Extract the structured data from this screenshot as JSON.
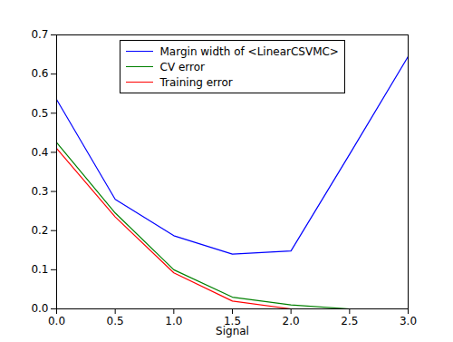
{
  "chart_data": {
    "type": "line",
    "x_label": "Signal",
    "x": [
      0,
      0.5,
      1,
      1.5,
      2,
      2.5,
      3
    ],
    "series": [
      {
        "name": "Margin width of <LinearCSVMC>",
        "color": "#0000ff",
        "values": [
          0.535,
          0.28,
          0.187,
          0.14,
          0.148,
          0.395,
          0.645
        ]
      },
      {
        "name": "CV error",
        "color": "#008000",
        "values": [
          0.425,
          0.245,
          0.1,
          0.03,
          0.01,
          0.0,
          0.0
        ]
      },
      {
        "name": "Training error",
        "color": "#ff0000",
        "values": [
          0.41,
          0.235,
          0.092,
          0.02,
          0.0,
          0.0,
          0.0
        ]
      }
    ],
    "xlim": [
      0,
      3
    ],
    "ylim": [
      0,
      0.7
    ],
    "xticks": [
      {
        "value": 0,
        "label": "0.0"
      },
      {
        "value": 0.5,
        "label": "0.5"
      },
      {
        "value": 1,
        "label": "1.0"
      },
      {
        "value": 1.5,
        "label": "1.5"
      },
      {
        "value": 2,
        "label": "2.0"
      },
      {
        "value": 2.5,
        "label": "2.5"
      },
      {
        "value": 3,
        "label": "3.0"
      }
    ],
    "yticks": [
      {
        "value": 0,
        "label": "0.0"
      },
      0.1,
      0.2,
      0.3,
      0.4,
      0.5,
      0.6,
      0.7
    ],
    "legend": "upper center",
    "grid": false
  }
}
